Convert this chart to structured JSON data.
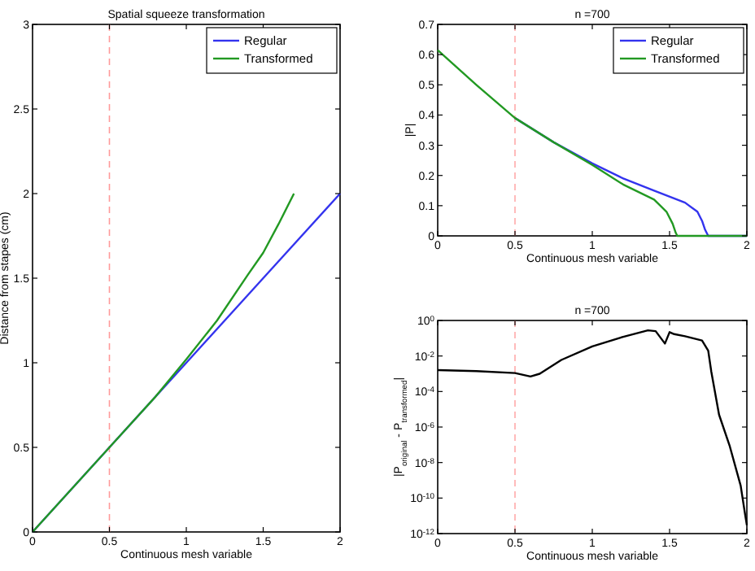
{
  "chart_data": [
    {
      "type": "line",
      "title": "Spatial squeeze transformation",
      "xlabel": "Continuous mesh variable",
      "ylabel": "Distance from stapes (cm)",
      "xlim": [
        0,
        2
      ],
      "ylim": [
        0,
        3
      ],
      "xticks": [
        0,
        0.5,
        1,
        1.5,
        2
      ],
      "yticks": [
        0,
        0.5,
        1,
        1.5,
        2,
        2.5,
        3
      ],
      "legend": "top right",
      "grid": false,
      "ref_lines": [
        {
          "axis": "x",
          "value": 0.5,
          "color": "#ff9999",
          "line_style": "dashed"
        }
      ],
      "series": [
        {
          "name": "Regular",
          "color": "#3333ee",
          "x": [
            0,
            0.5,
            1,
            1.5,
            2
          ],
          "values": [
            0,
            0.5,
            1,
            1.5,
            2
          ]
        },
        {
          "name": "Transformed",
          "color": "#229922",
          "x": [
            0,
            0.5,
            0.8,
            1,
            1.2,
            1.4,
            1.5,
            1.6,
            1.7
          ],
          "values": [
            0,
            0.5,
            0.8,
            1.02,
            1.25,
            1.52,
            1.65,
            1.82,
            2
          ]
        }
      ]
    },
    {
      "type": "line",
      "title": "n =700",
      "xlabel": "Continuous mesh variable",
      "ylabel": "|P|",
      "xlim": [
        0,
        2
      ],
      "ylim": [
        0,
        0.7
      ],
      "xticks": [
        0,
        0.5,
        1,
        1.5,
        2
      ],
      "yticks": [
        0,
        0.1,
        0.2,
        0.3,
        0.4,
        0.5,
        0.6,
        0.7
      ],
      "legend": "top right",
      "grid": false,
      "ref_lines": [
        {
          "axis": "x",
          "value": 0.5,
          "color": "#ffaaaa",
          "line_style": "dashed"
        }
      ],
      "series": [
        {
          "name": "Regular",
          "color": "#3333ee",
          "x": [
            0.5,
            0.75,
            1,
            1.2,
            1.4,
            1.6,
            1.68,
            1.71,
            1.73,
            1.75,
            2
          ],
          "values": [
            0.39,
            0.31,
            0.24,
            0.19,
            0.15,
            0.11,
            0.08,
            0.05,
            0.02,
            0,
            0
          ]
        },
        {
          "name": "Transformed",
          "color": "#229922",
          "x": [
            0,
            0.25,
            0.5,
            0.75,
            1,
            1.2,
            1.4,
            1.48,
            1.52,
            1.54,
            1.55,
            2
          ],
          "values": [
            0.615,
            0.5,
            0.39,
            0.31,
            0.235,
            0.17,
            0.12,
            0.08,
            0.04,
            0.01,
            0,
            0
          ]
        }
      ]
    },
    {
      "type": "line",
      "title": "n =700",
      "xlabel": "Continuous mesh variable",
      "ylabel": "|P$_{original}$ - P$_{transformed}$|",
      "xlim": [
        0,
        2
      ],
      "ylim": [
        1e-12,
        1
      ],
      "log": "y",
      "grid": false,
      "xticks": [
        0,
        0.5,
        1,
        1.5,
        2
      ],
      "yticks": [
        {
          "value": 1e-12,
          "label": "10$^{-12}$"
        },
        {
          "value": 1e-10,
          "label": "10$^{-10}$"
        },
        {
          "value": 1e-08,
          "label": "10$^{-8}$"
        },
        {
          "value": 1e-06,
          "label": "10$^{-6}$"
        },
        {
          "value": 0.0001,
          "label": "10$^{-4}$"
        },
        {
          "value": 0.01,
          "label": "10$^{-2}$"
        },
        {
          "value": 1,
          "label": "10$^{0}$"
        }
      ],
      "ref_lines": [
        {
          "axis": "x",
          "value": 0.5,
          "color": "#ffaaaa",
          "line_style": "dashed"
        }
      ],
      "series": [
        {
          "color": "#000000",
          "x": [
            0,
            0.25,
            0.5,
            0.6,
            0.66,
            0.8,
            1,
            1.2,
            1.36,
            1.41,
            1.47,
            1.5,
            1.53,
            1.6,
            1.71,
            1.75,
            1.77,
            1.82,
            1.89,
            1.96,
            1.99,
            2
          ],
          "values": [
            0.0016,
            0.0014,
            0.0011,
            0.0007,
            0.001,
            0.006,
            0.035,
            0.12,
            0.28,
            0.25,
            0.05,
            0.22,
            0.17,
            0.13,
            0.075,
            0.02,
            0.0013,
            5e-06,
            8e-08,
            5e-10,
            1e-11,
            3e-12
          ]
        }
      ]
    }
  ]
}
